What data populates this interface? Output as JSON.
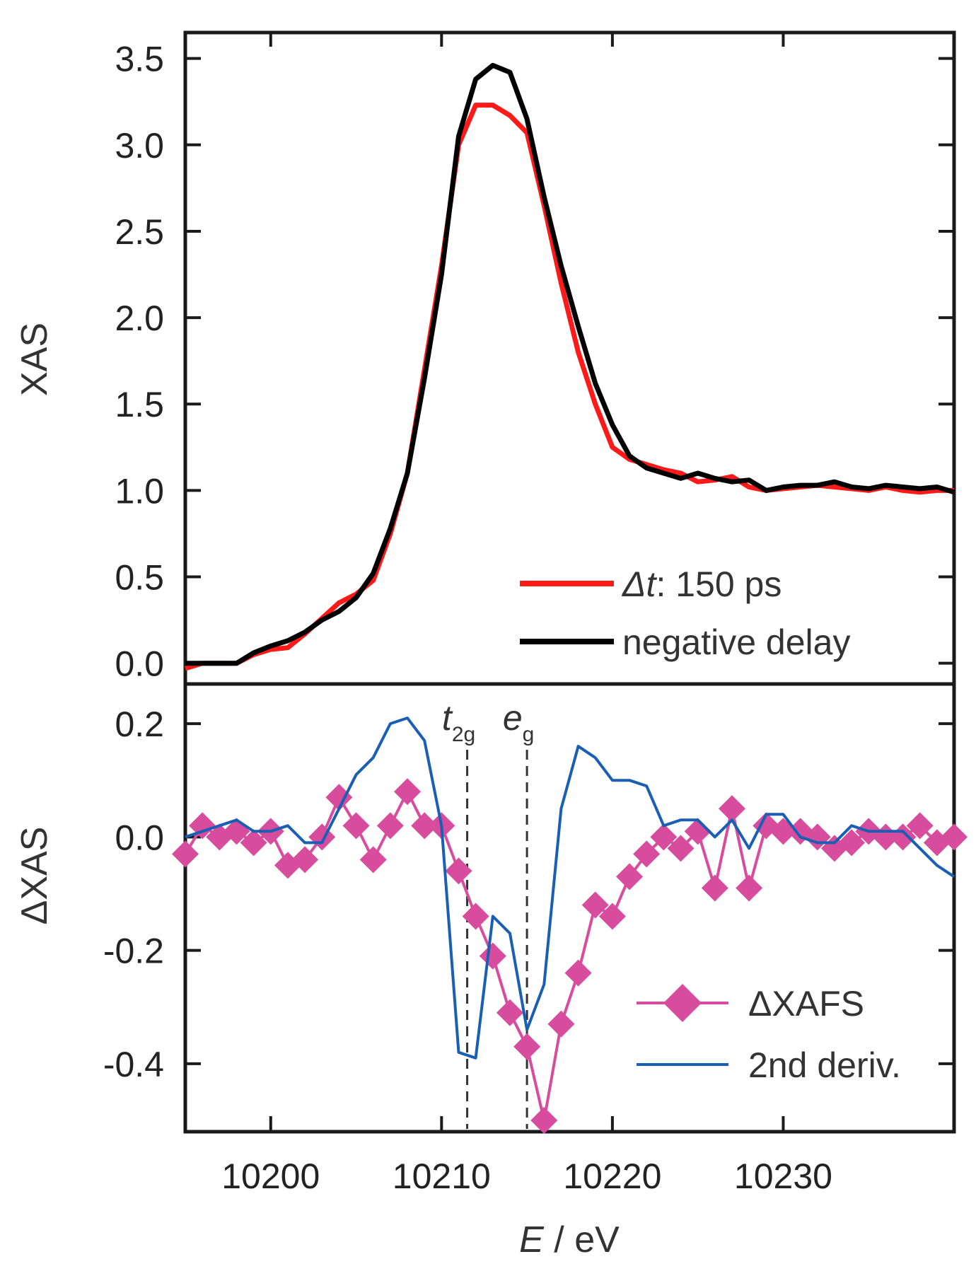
{
  "chart_data": [
    {
      "type": "line",
      "panel": "top",
      "ylabel": "XAS",
      "xlim": [
        10195,
        10240
      ],
      "ylim": [
        -0.12,
        3.65
      ],
      "yticks": [
        "0.0",
        "0.5",
        "1.0",
        "1.5",
        "2.0",
        "2.5",
        "3.0",
        "3.5"
      ],
      "grid": false,
      "legend_position": "bottom-right",
      "series": [
        {
          "name": "150 ps",
          "legend_prefix": "Δt",
          "legend_rest": ": 150 ps",
          "color": "#ff1a1a",
          "x": [
            10195,
            10196,
            10197,
            10198,
            10199,
            10200,
            10201,
            10202,
            10203,
            10204,
            10205,
            10206,
            10207,
            10208,
            10209,
            10210,
            10211,
            10212,
            10213,
            10214,
            10215,
            10216,
            10217,
            10218,
            10219,
            10220,
            10221,
            10222,
            10223,
            10224,
            10225,
            10226,
            10227,
            10228,
            10229,
            10230,
            10231,
            10232,
            10233,
            10234,
            10235,
            10236,
            10237,
            10238,
            10239,
            10240
          ],
          "y": [
            -0.03,
            0.0,
            0.0,
            0.0,
            0.05,
            0.08,
            0.09,
            0.17,
            0.26,
            0.35,
            0.4,
            0.48,
            0.75,
            1.1,
            1.7,
            2.3,
            3.0,
            3.23,
            3.23,
            3.17,
            3.07,
            2.65,
            2.2,
            1.8,
            1.5,
            1.25,
            1.18,
            1.15,
            1.12,
            1.1,
            1.05,
            1.06,
            1.08,
            1.02,
            1.0,
            1.01,
            1.02,
            1.03,
            1.02,
            1.01,
            1.0,
            1.02,
            1.0,
            0.99,
            1.0,
            1.0
          ]
        },
        {
          "name": "negative delay",
          "legend_prefix": "",
          "legend_rest": "negative delay",
          "color": "#000000",
          "x": [
            10195,
            10196,
            10197,
            10198,
            10199,
            10200,
            10201,
            10202,
            10203,
            10204,
            10205,
            10206,
            10207,
            10208,
            10209,
            10210,
            10211,
            10212,
            10213,
            10214,
            10215,
            10216,
            10217,
            10218,
            10219,
            10220,
            10221,
            10222,
            10223,
            10224,
            10225,
            10226,
            10227,
            10228,
            10229,
            10230,
            10231,
            10232,
            10233,
            10234,
            10235,
            10236,
            10237,
            10238,
            10239,
            10240
          ],
          "y": [
            0.0,
            0.0,
            0.0,
            0.0,
            0.06,
            0.1,
            0.13,
            0.18,
            0.25,
            0.3,
            0.38,
            0.52,
            0.78,
            1.1,
            1.65,
            2.25,
            3.05,
            3.38,
            3.46,
            3.42,
            3.15,
            2.7,
            2.3,
            1.95,
            1.62,
            1.38,
            1.2,
            1.13,
            1.1,
            1.07,
            1.1,
            1.07,
            1.05,
            1.06,
            1.0,
            1.02,
            1.03,
            1.03,
            1.05,
            1.02,
            1.01,
            1.03,
            1.02,
            1.01,
            1.02,
            0.99
          ]
        }
      ]
    },
    {
      "type": "line",
      "panel": "bottom",
      "ylabel": "ΔXAS",
      "xlabel": "E / eV",
      "xlabel_italic": "E",
      "xlabel_rest": " / eV",
      "xlim": [
        10195,
        10240
      ],
      "ylim": [
        -0.52,
        0.27
      ],
      "xticks": [
        "10200",
        "10210",
        "10220",
        "10230"
      ],
      "yticks": [
        "-0.4",
        "-0.2",
        "0.0",
        "0.2"
      ],
      "grid": false,
      "legend_position": "bottom-right",
      "annotations": [
        {
          "base": "t",
          "sub": "2g",
          "x": 10211.5
        },
        {
          "base": "e",
          "sub": "g",
          "x": 10215
        }
      ],
      "series": [
        {
          "name": "ΔXAFS",
          "legend_label": "ΔXAFS",
          "color": "#d84c9e",
          "marker": "diamond",
          "x": [
            10195,
            10196,
            10197,
            10198,
            10199,
            10200,
            10201,
            10202,
            10203,
            10204,
            10205,
            10206,
            10207,
            10208,
            10209,
            10210,
            10211,
            10212,
            10213,
            10214,
            10215,
            10216,
            10217,
            10218,
            10219,
            10220,
            10221,
            10222,
            10223,
            10224,
            10225,
            10226,
            10227,
            10228,
            10229,
            10230,
            10231,
            10232,
            10233,
            10234,
            10235,
            10236,
            10237,
            10238,
            10239,
            10240
          ],
          "y": [
            -0.03,
            0.02,
            0.0,
            0.01,
            -0.01,
            0.01,
            -0.05,
            -0.04,
            0.0,
            0.07,
            0.02,
            -0.04,
            0.02,
            0.08,
            0.02,
            0.02,
            -0.06,
            -0.14,
            -0.21,
            -0.31,
            -0.37,
            -0.5,
            -0.33,
            -0.24,
            -0.12,
            -0.14,
            -0.07,
            -0.03,
            0.0,
            -0.02,
            0.01,
            -0.09,
            0.05,
            -0.09,
            0.02,
            0.01,
            0.01,
            0.0,
            -0.02,
            -0.01,
            0.01,
            0.0,
            0.0,
            0.02,
            -0.01,
            0.0
          ]
        },
        {
          "name": "2nd deriv.",
          "legend_label": "2nd deriv.",
          "color": "#1a5fb4",
          "marker": "none",
          "x": [
            10195,
            10196,
            10197,
            10198,
            10199,
            10200,
            10201,
            10202,
            10203,
            10204,
            10205,
            10206,
            10207,
            10208,
            10209,
            10210,
            10211,
            10212,
            10213,
            10214,
            10215,
            10216,
            10217,
            10218,
            10219,
            10220,
            10221,
            10222,
            10223,
            10224,
            10225,
            10226,
            10227,
            10228,
            10229,
            10230,
            10231,
            10232,
            10233,
            10234,
            10235,
            10236,
            10237,
            10238,
            10239,
            10240
          ],
          "y": [
            0.0,
            0.01,
            0.02,
            0.03,
            0.01,
            0.01,
            0.02,
            -0.01,
            -0.01,
            0.05,
            0.11,
            0.14,
            0.2,
            0.21,
            0.17,
            0.02,
            -0.38,
            -0.39,
            -0.14,
            -0.17,
            -0.34,
            -0.26,
            0.05,
            0.16,
            0.14,
            0.1,
            0.1,
            0.09,
            0.02,
            0.03,
            0.03,
            0.0,
            0.03,
            -0.02,
            0.04,
            0.04,
            0.0,
            -0.01,
            -0.01,
            0.02,
            0.01,
            0.01,
            0.01,
            -0.02,
            -0.05,
            -0.07
          ]
        }
      ]
    }
  ]
}
